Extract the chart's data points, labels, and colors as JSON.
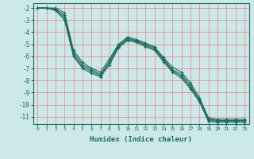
{
  "title": "",
  "xlabel": "Humidex (Indice chaleur)",
  "background_color": "#cce8e8",
  "grid_color": "#f08080",
  "line_color": "#1a6b60",
  "xlim": [
    -0.5,
    23.5
  ],
  "ylim": [
    -11.6,
    -1.6
  ],
  "yticks": [
    -2,
    -3,
    -4,
    -5,
    -6,
    -7,
    -8,
    -9,
    -10,
    -11
  ],
  "xticks": [
    0,
    1,
    2,
    3,
    4,
    5,
    6,
    7,
    8,
    9,
    10,
    11,
    12,
    13,
    14,
    15,
    16,
    17,
    18,
    19,
    20,
    21,
    22,
    23
  ],
  "series": [
    [
      -2.0,
      -2.0,
      -2.0,
      -2.4,
      -5.5,
      -6.5,
      -7.0,
      -7.3,
      -6.2,
      -5.0,
      -4.4,
      -4.6,
      -4.9,
      -5.2,
      -6.1,
      -6.9,
      -7.3,
      -8.2,
      -9.4,
      -11.1,
      -11.2,
      -11.2,
      -11.2,
      -11.2
    ],
    [
      -2.0,
      -2.0,
      -2.1,
      -2.6,
      -5.7,
      -6.7,
      -7.1,
      -7.5,
      -6.4,
      -5.1,
      -4.5,
      -4.7,
      -5.0,
      -5.3,
      -6.2,
      -7.1,
      -7.5,
      -8.4,
      -9.6,
      -11.2,
      -11.3,
      -11.3,
      -11.3,
      -11.3
    ],
    [
      -2.0,
      -2.0,
      -2.15,
      -2.8,
      -5.9,
      -6.85,
      -7.25,
      -7.6,
      -6.55,
      -5.2,
      -4.6,
      -4.75,
      -5.1,
      -5.4,
      -6.3,
      -7.2,
      -7.65,
      -8.55,
      -9.65,
      -11.3,
      -11.35,
      -11.35,
      -11.35,
      -11.35
    ],
    [
      -2.0,
      -2.0,
      -2.2,
      -3.0,
      -6.0,
      -7.0,
      -7.4,
      -7.7,
      -6.7,
      -5.3,
      -4.7,
      -4.85,
      -5.2,
      -5.5,
      -6.45,
      -7.3,
      -7.8,
      -8.7,
      -9.75,
      -11.4,
      -11.45,
      -11.45,
      -11.45,
      -11.45
    ]
  ]
}
